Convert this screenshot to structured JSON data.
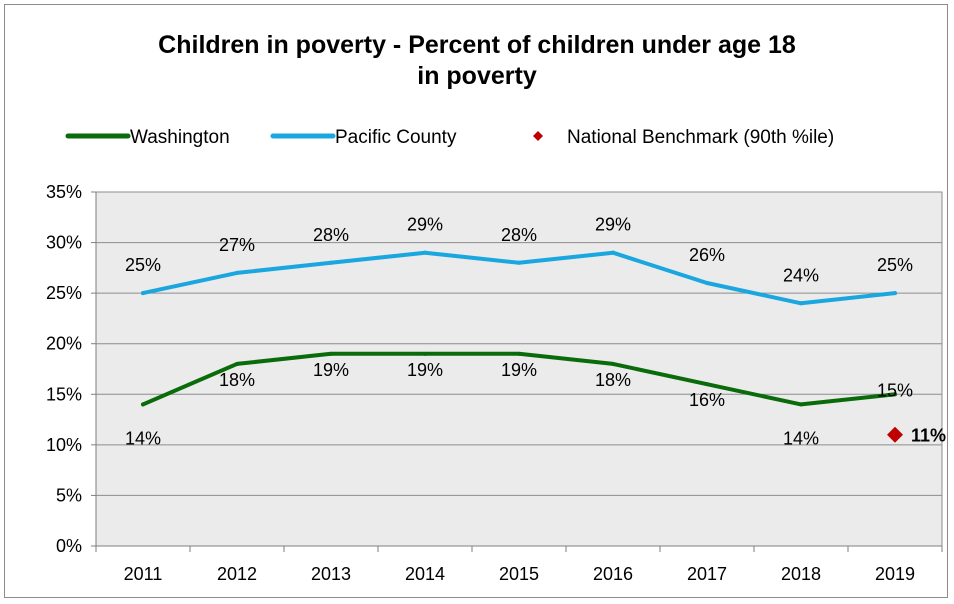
{
  "chart_data": {
    "type": "line",
    "title_line1": "Children in poverty - Percent of children under age 18",
    "title_line2": "in poverty",
    "categories": [
      "2011",
      "2012",
      "2013",
      "2014",
      "2015",
      "2016",
      "2017",
      "2018",
      "2019"
    ],
    "ylim": [
      0,
      35
    ],
    "yticks": [
      0,
      5,
      10,
      15,
      20,
      25,
      30,
      35
    ],
    "ytick_labels": [
      "0%",
      "5%",
      "10%",
      "15%",
      "20%",
      "25%",
      "30%",
      "35%"
    ],
    "grid": true,
    "legend_position": "top",
    "series": [
      {
        "name": "Washington",
        "color": "#0a6b0a",
        "values": [
          14,
          18,
          19,
          19,
          19,
          18,
          16,
          14,
          15
        ],
        "labels": [
          "14%",
          "18%",
          "19%",
          "19%",
          "19%",
          "18%",
          "16%",
          "14%",
          "15%"
        ]
      },
      {
        "name": "Pacific County",
        "color": "#1aa7e0",
        "values": [
          25,
          27,
          28,
          29,
          28,
          29,
          26,
          24,
          25
        ],
        "labels": [
          "25%",
          "27%",
          "28%",
          "29%",
          "28%",
          "29%",
          "26%",
          "24%",
          "25%"
        ]
      }
    ],
    "benchmark": {
      "name": "National Benchmark (90th %ile)",
      "color": "#c00000",
      "x": "2019",
      "value": 11,
      "label": "11%"
    }
  }
}
